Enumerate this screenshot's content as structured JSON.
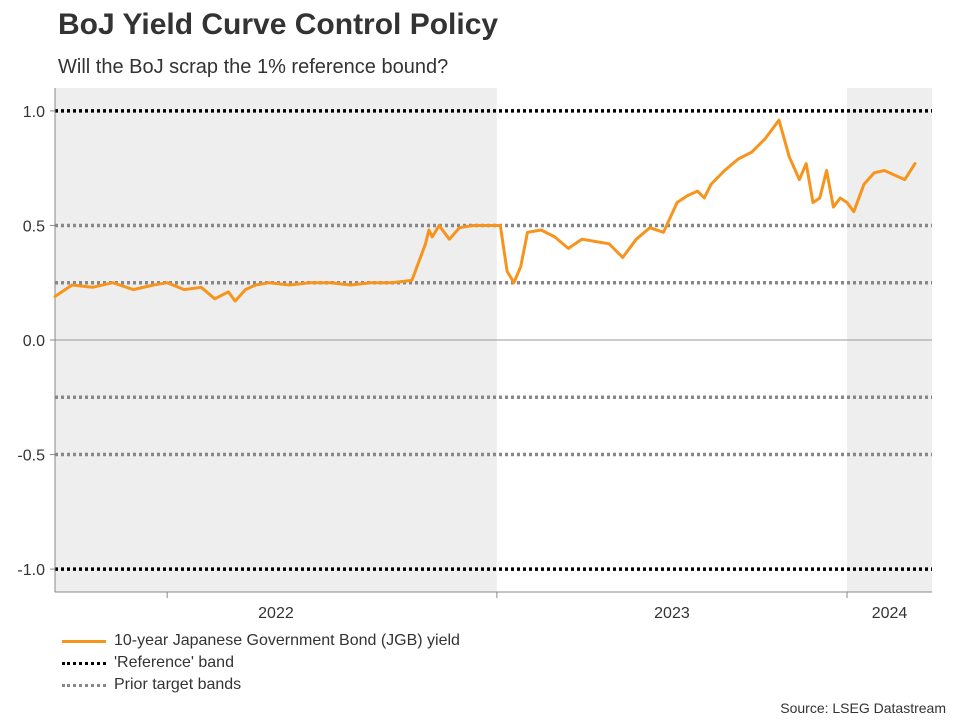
{
  "title": "BoJ Yield Curve Control Policy",
  "subtitle": "Will the BoJ scrap the 1% reference bound?",
  "source": "Source: LSEG Datastream",
  "colors": {
    "yield_line": "#F7941D",
    "reference_band": "#000000",
    "prior_band": "#888888",
    "shade": "#EEEEEE",
    "axis": "#888888",
    "zero_line": "#999999"
  },
  "legend": [
    {
      "key": "yield",
      "label": "10-year Japanese Government Bond (JGB) yield"
    },
    {
      "key": "reference",
      "label": "'Reference' band"
    },
    {
      "key": "prior",
      "label": "Prior target bands"
    }
  ],
  "chart_data": {
    "type": "line",
    "title": "BoJ Yield Curve Control Policy",
    "ylim": [
      -1.1,
      1.1
    ],
    "xlim": [
      2021.67,
      2024.25
    ],
    "y_ticks": [
      {
        "value": 1.0,
        "label": "1.0"
      },
      {
        "value": 0.5,
        "label": "0.5"
      },
      {
        "value": 0.0,
        "label": "0.0"
      },
      {
        "value": -0.5,
        "label": "-0.5"
      },
      {
        "value": -1.0,
        "label": "-1.0"
      }
    ],
    "x_ticks": [
      2022,
      2023,
      2024
    ],
    "x_tick_labels": [
      {
        "label": "2022",
        "at": 2022.0
      },
      {
        "label": "2023",
        "at": 2023.0
      },
      {
        "label": "2024",
        "at": 2024.0
      }
    ],
    "shaded_periods": [
      {
        "start": 2021.67,
        "end": 2022.0
      },
      {
        "start": 2022.0,
        "end": 2023.0,
        "shade_end": 2022.97
      },
      {
        "start": 2024.0,
        "end": 2024.25
      }
    ],
    "reference_band": [
      1.0,
      -1.0
    ],
    "prior_target_bands": [
      0.5,
      0.25,
      -0.25,
      -0.5
    ],
    "series": [
      {
        "name": "10-year Japanese Government Bond (JGB) yield",
        "x": [
          2021.67,
          2021.72,
          2021.78,
          2021.84,
          2021.9,
          2021.96,
          2022.0,
          2022.05,
          2022.1,
          2022.14,
          2022.18,
          2022.2,
          2022.23,
          2022.26,
          2022.3,
          2022.36,
          2022.42,
          2022.48,
          2022.54,
          2022.6,
          2022.66,
          2022.72,
          2022.76,
          2022.77,
          2022.78,
          2022.8,
          2022.83,
          2022.86,
          2022.9,
          2022.94,
          2022.98,
          2023.0,
          2023.02,
          2023.04,
          2023.06,
          2023.1,
          2023.14,
          2023.18,
          2023.22,
          2023.26,
          2023.3,
          2023.34,
          2023.38,
          2023.42,
          2023.46,
          2023.5,
          2023.53,
          2023.56,
          2023.58,
          2023.6,
          2023.64,
          2023.68,
          2023.72,
          2023.76,
          2023.8,
          2023.83,
          2023.86,
          2023.88,
          2023.9,
          2023.92,
          2023.94,
          2023.96,
          2023.98,
          2024.0,
          2024.02,
          2024.05,
          2024.08,
          2024.11,
          2024.14,
          2024.17,
          2024.2
        ],
        "values": [
          0.19,
          0.24,
          0.23,
          0.25,
          0.22,
          0.24,
          0.25,
          0.22,
          0.23,
          0.18,
          0.21,
          0.17,
          0.22,
          0.24,
          0.25,
          0.24,
          0.25,
          0.25,
          0.24,
          0.25,
          0.25,
          0.26,
          0.42,
          0.48,
          0.45,
          0.5,
          0.44,
          0.49,
          0.5,
          0.5,
          0.5,
          0.3,
          0.25,
          0.32,
          0.47,
          0.48,
          0.45,
          0.4,
          0.44,
          0.43,
          0.42,
          0.36,
          0.44,
          0.49,
          0.47,
          0.6,
          0.63,
          0.65,
          0.62,
          0.68,
          0.74,
          0.79,
          0.82,
          0.88,
          0.96,
          0.8,
          0.7,
          0.77,
          0.6,
          0.62,
          0.74,
          0.58,
          0.62,
          0.6,
          0.56,
          0.68,
          0.73,
          0.74,
          0.72,
          0.7,
          0.77
        ]
      }
    ]
  }
}
